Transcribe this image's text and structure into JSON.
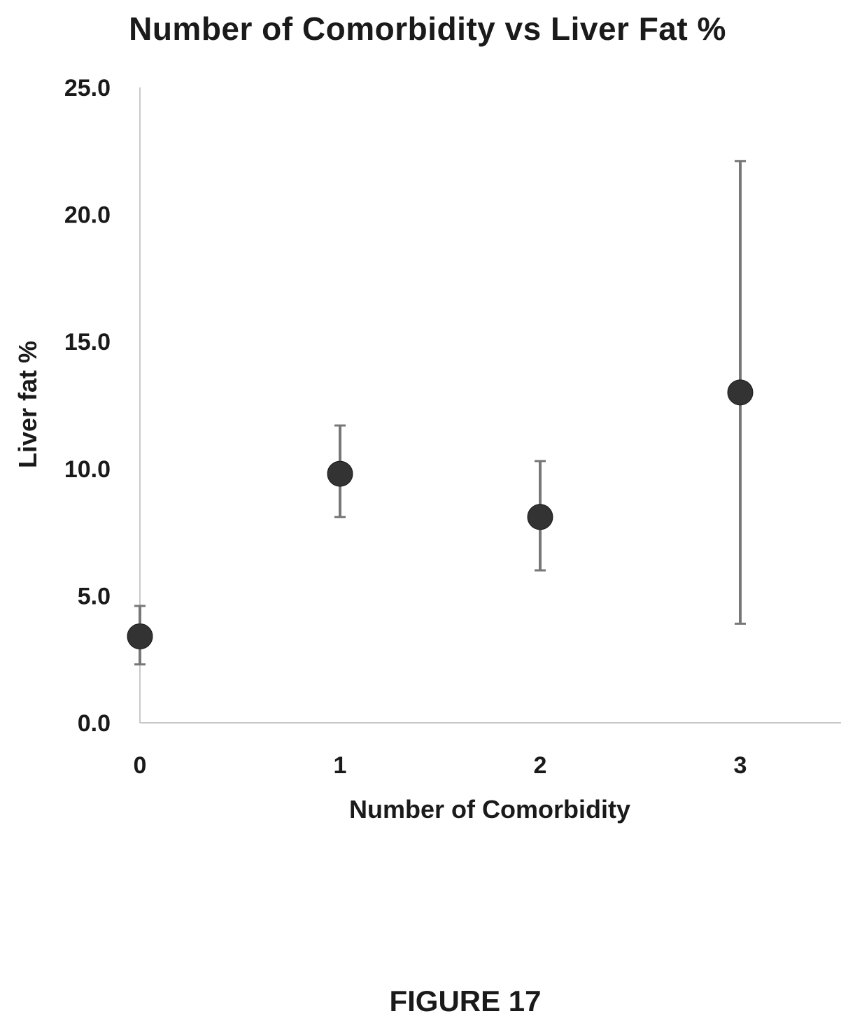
{
  "chart_data": {
    "type": "scatter",
    "title": "Number of Comorbidity vs Liver Fat %",
    "xlabel": "Number of Comorbidity",
    "ylabel": "Liver fat %",
    "x_ticks": [
      "0",
      "1",
      "2",
      "3"
    ],
    "y_ticks": [
      "0.0",
      "5.0",
      "10.0",
      "15.0",
      "20.0",
      "25.0"
    ],
    "xlim": [
      0,
      3.5
    ],
    "ylim": [
      0,
      25
    ],
    "grid": false,
    "legend": "none",
    "points": [
      {
        "x": 0,
        "y": 3.4,
        "err_low": 2.3,
        "err_high": 4.6
      },
      {
        "x": 1,
        "y": 9.8,
        "err_low": 8.1,
        "err_high": 11.7
      },
      {
        "x": 2,
        "y": 8.1,
        "err_low": 6.0,
        "err_high": 10.3
      },
      {
        "x": 3,
        "y": 13.0,
        "err_low": 3.9,
        "err_high": 22.1
      }
    ],
    "marker_color": "#333333",
    "errorbar_color": "#777777"
  },
  "figure_label": "FIGURE 17"
}
